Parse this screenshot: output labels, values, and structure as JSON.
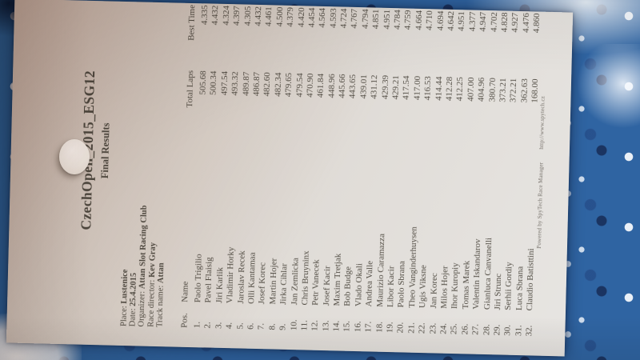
{
  "colors": {
    "tablecloth_blue": "#2f64a2",
    "paper_warm": "#cdbfb7",
    "paper_light": "#e7e5e2",
    "ink": "#474239"
  },
  "document": {
    "title": "CzechOpen_2015_ESG12",
    "subtitle": "Final Results",
    "info": [
      {
        "label": "Place:",
        "value": "Lustenice"
      },
      {
        "label": "Date:",
        "value": "25.4.2015"
      },
      {
        "label": "Organizer:",
        "value": "Attan Slot Racing Club"
      },
      {
        "label": "Race director:",
        "value": "Kev Gray"
      },
      {
        "label": "Track name:",
        "value": "Attan"
      }
    ],
    "table": {
      "columns": [
        "Pos.",
        "Name",
        "Total Laps",
        "Best Time"
      ],
      "rows": [
        [
          "1.",
          "Paolo Trigilio",
          "505.68",
          "4.335"
        ],
        [
          "2.",
          "Pavel Flaisig",
          "500.34",
          "4.432"
        ],
        [
          "3.",
          "Jiri Karlik",
          "497.54",
          "4.324"
        ],
        [
          "4.",
          "Vladimir Horky",
          "493.32",
          "4.397"
        ],
        [
          "5.",
          "Jaroslav Recek",
          "489.87",
          "4.305"
        ],
        [
          "6.",
          "Olli Kantamaa",
          "486.87",
          "4.432"
        ],
        [
          "7.",
          "Josef Korec",
          "482.60",
          "4.461"
        ],
        [
          "8.",
          "Martin Hojer",
          "482.34",
          "4.500"
        ],
        [
          "9.",
          "Jirka Cihlar",
          "479.65",
          "4.379"
        ],
        [
          "10.",
          "Jan Zemlicka",
          "479.54",
          "4.420"
        ],
        [
          "11.",
          "Chris Bruyninx",
          "470.90",
          "4.454"
        ],
        [
          "12.",
          "Petr Vanecek",
          "461.84",
          "4.564"
        ],
        [
          "13.",
          "Josef Kacir",
          "448.96",
          "4.593"
        ],
        [
          "14.",
          "Maxim Tretjak",
          "445.66",
          "4.724"
        ],
        [
          "15.",
          "Bob Budge",
          "443.65",
          "4.767"
        ],
        [
          "16.",
          "Vlado Okali",
          "439.01",
          "4.794"
        ],
        [
          "17.",
          "Andrea Valle",
          "431.12",
          "4.851"
        ],
        [
          "18.",
          "Maurizio Caramazza",
          "429.39",
          "4.951"
        ],
        [
          "19.",
          "Libor Kacir",
          "429.21",
          "4.784"
        ],
        [
          "20.",
          "Paolo Sbrana",
          "417.54",
          "4.759"
        ],
        [
          "21.",
          "Theo Vanginderhuysen",
          "417.00",
          "4.664"
        ],
        [
          "22.",
          "Ugis Viksne",
          "416.53",
          "4.710"
        ],
        [
          "23.",
          "Jan Korec",
          "414.44",
          "4.694"
        ],
        [
          "24.",
          "Milos Hojer",
          "412.28",
          "4.642"
        ],
        [
          "25.",
          "Ihor Kuropiy",
          "412.25",
          "4.951"
        ],
        [
          "26.",
          "Tomas Marek",
          "407.00",
          "4.377"
        ],
        [
          "27.",
          "Valentin Iskandarov",
          "404.96",
          "4.947"
        ],
        [
          "28.",
          "Gianluca Canvanelli",
          "380.70",
          "4.702"
        ],
        [
          "29.",
          "Jiri Strunc",
          "373.21",
          "4.828"
        ],
        [
          "30.",
          "Serhii Gordiy",
          "372.21",
          "4.927"
        ],
        [
          "31.",
          "Luca Sbrana",
          "362.63",
          "4.476"
        ],
        [
          "32.",
          "Claudio Batisttini",
          "168.00",
          "4.860"
        ]
      ]
    },
    "footer": {
      "powered": "Powered by SpyTech Race Manager",
      "url": "http://www.spytech.cz"
    }
  }
}
